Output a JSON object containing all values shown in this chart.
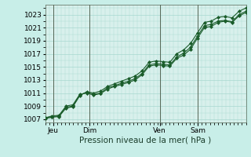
{
  "title": "Pression niveau de la mer( hPa )",
  "bg_color": "#c8eee8",
  "plot_bg_color": "#d8f0ec",
  "grid_color": "#a8d8d0",
  "line_color": "#1a5c2a",
  "marker_color": "#1a5c2a",
  "vline_color": "#556655",
  "ylim": [
    1006.5,
    1024.5
  ],
  "yticks": [
    1007,
    1009,
    1011,
    1013,
    1015,
    1017,
    1019,
    1021,
    1023
  ],
  "xtick_labels": [
    "Jeu",
    "Dim",
    "Ven",
    "Sam"
  ],
  "xtick_positions": [
    0.04,
    0.22,
    0.57,
    0.76
  ],
  "vline_positions": [
    0.04,
    0.22,
    0.57,
    0.76
  ],
  "series": [
    [
      1007.2,
      1007.4,
      1007.5,
      1008.8,
      1009.0,
      1010.7,
      1011.1,
      1010.8,
      1011.0,
      1011.8,
      1012.1,
      1012.5,
      1012.8,
      1013.2,
      1014.0,
      1015.3,
      1015.5,
      1015.4,
      1015.3,
      1016.5,
      1017.1,
      1018.0,
      1019.7,
      1021.3,
      1021.5,
      1022.0,
      1022.1,
      1021.9,
      1023.0,
      1023.5
    ],
    [
      1007.2,
      1007.5,
      1007.6,
      1009.0,
      1009.2,
      1010.8,
      1011.0,
      1010.7,
      1010.9,
      1011.6,
      1012.0,
      1012.3,
      1012.6,
      1013.0,
      1013.8,
      1015.1,
      1015.3,
      1015.2,
      1015.1,
      1016.3,
      1016.8,
      1017.7,
      1019.4,
      1021.0,
      1021.2,
      1021.8,
      1022.0,
      1021.8,
      1022.8,
      1023.3
    ],
    [
      1007.1,
      1007.3,
      1007.4,
      1008.7,
      1008.9,
      1010.6,
      1011.2,
      1011.0,
      1011.3,
      1012.0,
      1012.4,
      1012.8,
      1013.2,
      1013.6,
      1014.4,
      1015.7,
      1015.9,
      1015.8,
      1015.7,
      1017.0,
      1017.6,
      1018.6,
      1020.2,
      1021.8,
      1022.0,
      1022.6,
      1022.7,
      1022.5,
      1023.5,
      1024.0
    ]
  ],
  "n_points": 30,
  "title_fontsize": 7.5,
  "tick_fontsize": 6.5
}
